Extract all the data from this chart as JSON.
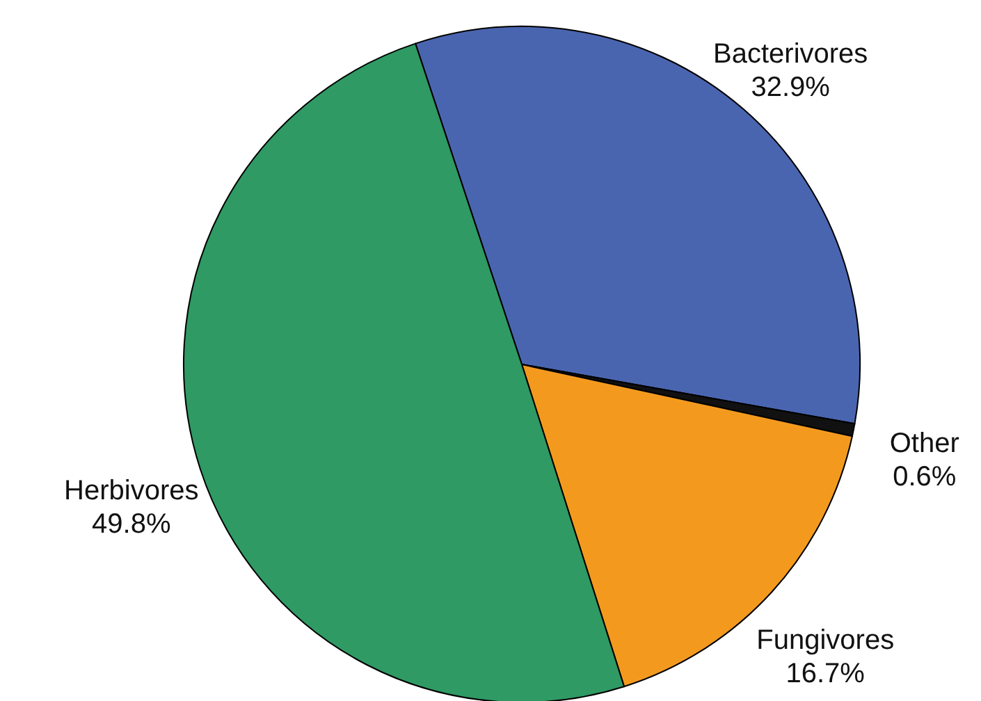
{
  "chart_data": {
    "type": "pie",
    "categories": [
      "Bacterivores",
      "Other",
      "Fungivores",
      "Herbivores"
    ],
    "values": [
      32.9,
      0.6,
      16.7,
      49.8
    ],
    "value_labels": [
      "32.9%",
      "0.6%",
      "16.7%",
      "49.8%"
    ],
    "colors": [
      "#4a65b0",
      "#111111",
      "#f39a1e",
      "#2f9a64"
    ]
  }
}
